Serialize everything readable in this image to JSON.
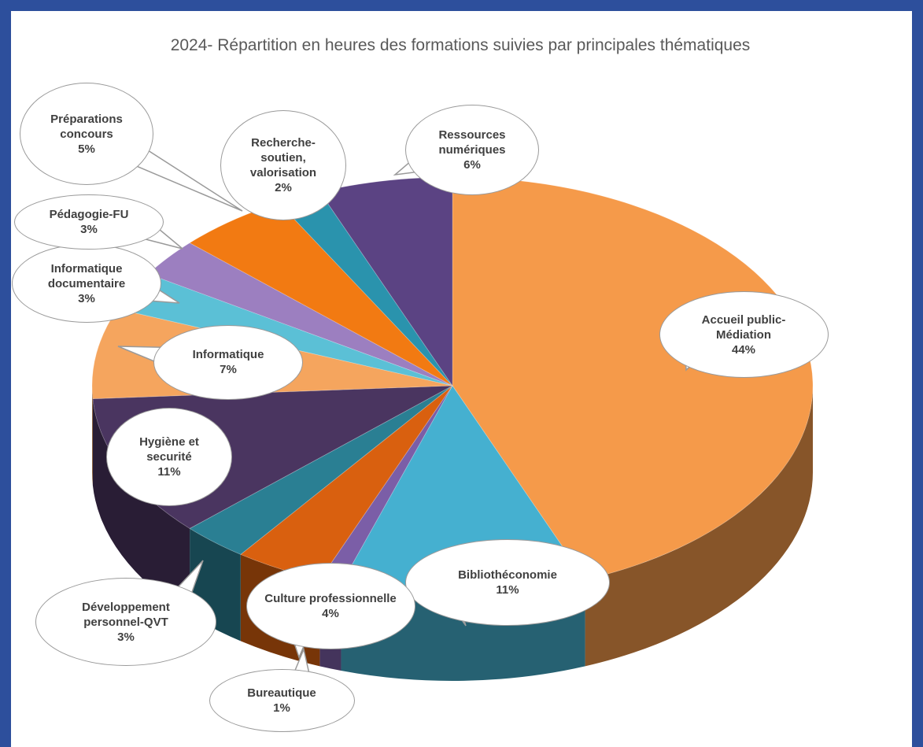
{
  "chart_data": {
    "type": "pie",
    "title": "2024- Répartition en heures des formations suivies par principales thématiques",
    "categories": [
      "Accueil public-Médiation",
      "Bibliothéconomie",
      "Bureautique",
      "Culture professionnelle",
      "Développement personnel-QVT",
      "Hygiène et securité",
      "Informatique",
      "Informatique documentaire",
      "Pédagogie-FU",
      "Préparations concours",
      "Recherche-soutien, valorisation",
      "Ressources numériques"
    ],
    "values": [
      44,
      11,
      1,
      4,
      3,
      11,
      7,
      3,
      3,
      5,
      2,
      6
    ],
    "value_labels": [
      "44%",
      "11%",
      "1%",
      "4%",
      "3%",
      "11%",
      "7%",
      "3%",
      "3%",
      "5%",
      "2%",
      "6%"
    ],
    "colors": [
      "#f59a4a",
      "#45b0d0",
      "#7b5ea7",
      "#d9600f",
      "#2a7f93",
      "#4a3560",
      "#f5a55e",
      "#5bc0d6",
      "#9c7fc0",
      "#f27a12",
      "#2a93ad",
      "#5b4383"
    ]
  }
}
